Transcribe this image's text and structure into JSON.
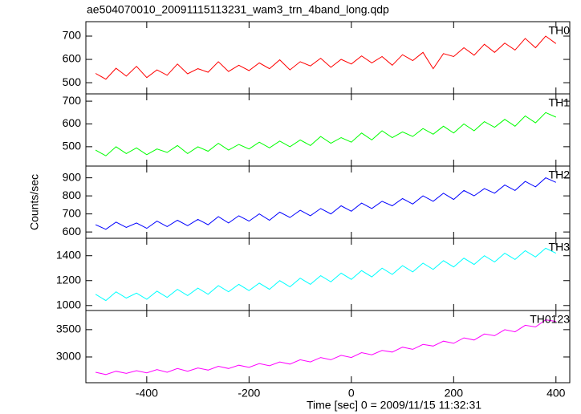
{
  "chart_data": {
    "type": "line",
    "title": "ae504070010_20091115113231_wam3_trn_4band_long.qdp",
    "xlabel": "Time [sec] 0 = 2009/11/15 11:32:31",
    "ylabel": "Counts/sec",
    "xlim": [
      -519,
      427
    ],
    "xticks": [
      -400,
      -200,
      0,
      200,
      400
    ],
    "x": [
      -500,
      -480,
      -460,
      -440,
      -420,
      -400,
      -380,
      -360,
      -340,
      -320,
      -300,
      -280,
      -260,
      -240,
      -220,
      -200,
      -180,
      -160,
      -140,
      -120,
      -100,
      -80,
      -60,
      -40,
      -20,
      0,
      20,
      40,
      60,
      80,
      100,
      120,
      140,
      160,
      180,
      200,
      220,
      240,
      260,
      280,
      300,
      320,
      340,
      360,
      380,
      400
    ],
    "series": [
      {
        "name": "TH0",
        "color": "#ff0000",
        "ylim": [
          452,
          762
        ],
        "yticks": [
          500,
          600,
          700
        ],
        "values": [
          540,
          515,
          562,
          528,
          570,
          522,
          555,
          532,
          580,
          538,
          560,
          545,
          590,
          548,
          575,
          552,
          585,
          560,
          598,
          555,
          590,
          572,
          605,
          566,
          600,
          580,
          615,
          585,
          612,
          575,
          620,
          595,
          630,
          560,
          625,
          612,
          650,
          618,
          665,
          630,
          670,
          640,
          690,
          650,
          700,
          668
        ]
      },
      {
        "name": "TH1",
        "color": "#00ff00",
        "ylim": [
          415,
          732
        ],
        "yticks": [
          500,
          600,
          700
        ],
        "values": [
          485,
          460,
          500,
          470,
          495,
          465,
          490,
          475,
          505,
          470,
          500,
          480,
          515,
          485,
          510,
          490,
          520,
          495,
          525,
          500,
          530,
          505,
          545,
          515,
          540,
          520,
          560,
          530,
          570,
          540,
          565,
          545,
          580,
          555,
          590,
          560,
          600,
          570,
          610,
          585,
          620,
          590,
          635,
          605,
          650,
          630
        ]
      },
      {
        "name": "TH2",
        "color": "#0000ff",
        "ylim": [
          565,
          965
        ],
        "yticks": [
          600,
          700,
          800,
          900
        ],
        "values": [
          640,
          615,
          655,
          625,
          650,
          620,
          660,
          630,
          665,
          635,
          670,
          640,
          685,
          650,
          690,
          660,
          700,
          665,
          710,
          680,
          720,
          690,
          730,
          700,
          745,
          715,
          760,
          730,
          770,
          745,
          785,
          755,
          800,
          770,
          815,
          780,
          830,
          800,
          840,
          815,
          860,
          830,
          880,
          850,
          900,
          875
        ]
      },
      {
        "name": "TH3",
        "color": "#00ffff",
        "ylim": [
          960,
          1540
        ],
        "yticks": [
          1000,
          1200,
          1400
        ],
        "values": [
          1090,
          1040,
          1110,
          1060,
          1100,
          1050,
          1115,
          1065,
          1130,
          1080,
          1140,
          1090,
          1160,
          1110,
          1170,
          1120,
          1180,
          1130,
          1200,
          1150,
          1220,
          1170,
          1240,
          1190,
          1260,
          1210,
          1280,
          1230,
          1300,
          1250,
          1320,
          1270,
          1340,
          1290,
          1360,
          1310,
          1380,
          1330,
          1400,
          1350,
          1420,
          1370,
          1440,
          1390,
          1460,
          1420
        ]
      },
      {
        "name": "TH0123",
        "color": "#ff00ff",
        "ylim": [
          2530,
          3850
        ],
        "yticks": [
          3000,
          3500
        ],
        "values": [
          2720,
          2680,
          2740,
          2700,
          2750,
          2710,
          2770,
          2720,
          2790,
          2740,
          2800,
          2760,
          2830,
          2790,
          2850,
          2810,
          2880,
          2840,
          2910,
          2870,
          2950,
          2910,
          2990,
          2950,
          3030,
          2990,
          3080,
          3040,
          3120,
          3090,
          3180,
          3140,
          3230,
          3200,
          3290,
          3250,
          3350,
          3310,
          3420,
          3390,
          3500,
          3460,
          3580,
          3550,
          3680,
          3650
        ]
      }
    ]
  }
}
